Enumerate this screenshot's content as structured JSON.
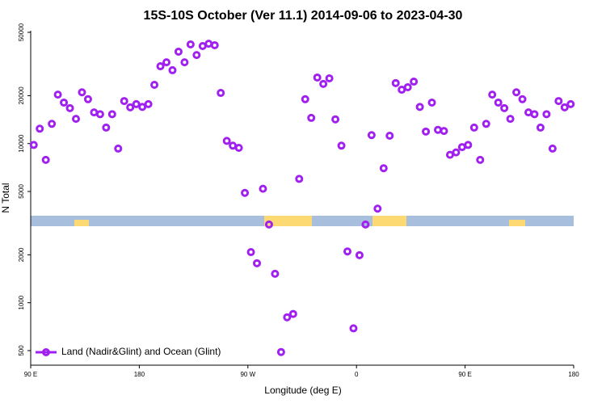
{
  "chart_data": {
    "type": "scatter",
    "title": "15S-10S October (Ver 11.1)   2014-09-06 to 2023-04-30",
    "x_label": "Longitude (deg E)",
    "y_label": "N Total",
    "x": [
      92.5,
      97.5,
      102.5,
      107.5,
      112.5,
      117.5,
      122.5,
      127.5,
      132.5,
      137.5,
      142.5,
      147.5,
      152.5,
      157.5,
      162.5,
      167.5,
      172.5,
      177.5,
      182.5,
      187.5,
      192.5,
      197.5,
      202.5,
      207.5,
      212.5,
      217.5,
      222.5,
      227.5,
      232.5,
      237.5,
      242.5,
      247.5,
      252.5,
      257.5,
      262.5,
      267.5,
      272.5,
      277.5,
      282.5,
      287.5,
      292.5,
      297.5,
      302.5,
      307.5,
      312.5,
      317.5,
      322.5,
      327.5,
      332.5,
      337.5,
      342.5,
      347.5,
      352.5,
      357.5,
      362.5,
      367.5,
      372.5,
      377.5,
      382.5,
      387.5,
      392.5,
      397.5,
      402.5,
      407.5,
      412.5,
      417.5,
      422.5,
      427.5,
      432.5,
      437.5,
      442.5,
      447.5,
      452.5,
      457.5,
      462.5,
      467.5,
      472.5,
      477.5,
      482.5,
      487.5,
      492.5,
      497.5,
      502.5,
      507.5,
      512.5,
      517.5,
      522.5,
      527.5,
      532.5,
      537.5
    ],
    "series": [
      {
        "name": "Land (Nadir&Glint) and Ocean (Glint)",
        "color": "#a020f0",
        "values": [
          9800,
          12400,
          7900,
          13300,
          20300,
          18100,
          16700,
          14300,
          21000,
          19000,
          15700,
          15300,
          12600,
          15300,
          9300,
          18500,
          16900,
          17700,
          17000,
          17700,
          23400,
          30600,
          32400,
          28900,
          37800,
          32400,
          42000,
          36000,
          41000,
          42400,
          41500,
          20800,
          10400,
          9700,
          9400,
          4900,
          2080,
          1770,
          5200,
          3100,
          1520,
          490,
          810,
          850,
          6000,
          19000,
          14500,
          26000,
          23700,
          25700,
          14200,
          9700,
          2100,
          690,
          1990,
          3100,
          11300,
          3900,
          7000,
          11200,
          24000,
          21800,
          22600,
          24500,
          17000,
          11900,
          18100,
          12200,
          12000,
          8500,
          8800,
          9500,
          9800,
          12600,
          7900,
          13300,
          20300,
          18100,
          16700,
          14300,
          21000,
          19000,
          15700,
          15300,
          12600,
          15300,
          9300,
          18500,
          16900,
          17700
        ]
      }
    ],
    "xlim": [
      90,
      540
    ],
    "xticks": [
      {
        "value": 90,
        "label": "90 E"
      },
      180,
      {
        "value": 270,
        "label": "90 W"
      },
      {
        "value": 360,
        "label": "0"
      },
      {
        "value": 450,
        "label": "90 E"
      },
      {
        "value": 540,
        "label": "180"
      }
    ],
    "ylim": [
      405,
      51200
    ],
    "yscale": "log",
    "yticks": [
      500,
      1000,
      2000,
      5000,
      10000,
      20000,
      50000
    ],
    "legend": "bottom-left"
  }
}
